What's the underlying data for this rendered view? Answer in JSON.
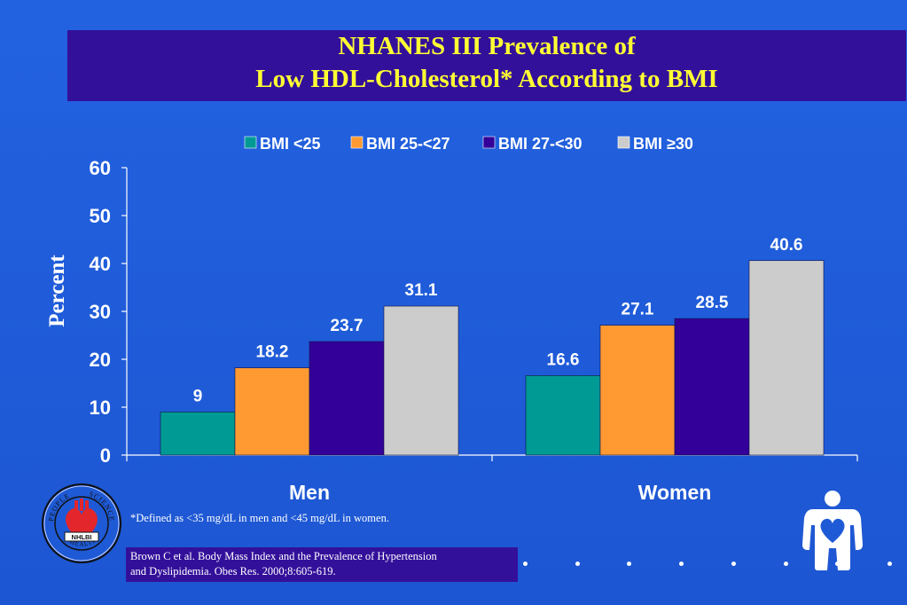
{
  "title": {
    "line1": "NHANES III Prevalence of",
    "line2": "Low HDL-Cholesterol* According to BMI"
  },
  "chart_data": {
    "type": "bar",
    "categories": [
      "Men",
      "Women"
    ],
    "series": [
      {
        "name": "BMI <25",
        "values": [
          9,
          16.6
        ],
        "labels": [
          "9",
          "16.6"
        ],
        "color": "#009a94"
      },
      {
        "name": "BMI 25-<27",
        "values": [
          18.2,
          27.1
        ],
        "labels": [
          "18.2",
          "27.1"
        ],
        "color": "#ff9a33"
      },
      {
        "name": "BMI 27-<30",
        "values": [
          23.7,
          28.5
        ],
        "labels": [
          "23.7",
          "28.5"
        ],
        "color": "#330099"
      },
      {
        "name": "BMI ≥30",
        "values": [
          31.1,
          40.6
        ],
        "labels": [
          "31.1",
          "40.6"
        ],
        "color": "#cccccc"
      }
    ],
    "ylabel": "Percent",
    "xlabel": "",
    "ylim": [
      0,
      60
    ],
    "yticks": [
      0,
      10,
      20,
      30,
      40,
      50,
      60
    ],
    "legend_position": "top",
    "grid": false
  },
  "footnote": "*Defined as <35 mg/dL in men and <45 mg/dL in women.",
  "citation": {
    "line1": "Brown C et al.  Body Mass Index and the Prevalence of Hypertension",
    "line2": "and Dyslipidemia. Obes Res. 2000;8:605-619."
  },
  "logo": {
    "ring_top_left": "PEOPLE",
    "ring_top_right": "SCIENCE",
    "ring_bottom": "HEALTH",
    "banner": "NHLBI",
    "icon": "nhlbi-seal-icon"
  },
  "decor": {
    "icon": "heart-person-icon",
    "bullet_count": 8
  },
  "colors": {
    "background": "#1f5ad6",
    "title_box": "#33109a",
    "title_text": "#ffff33",
    "text": "#ffffff"
  }
}
